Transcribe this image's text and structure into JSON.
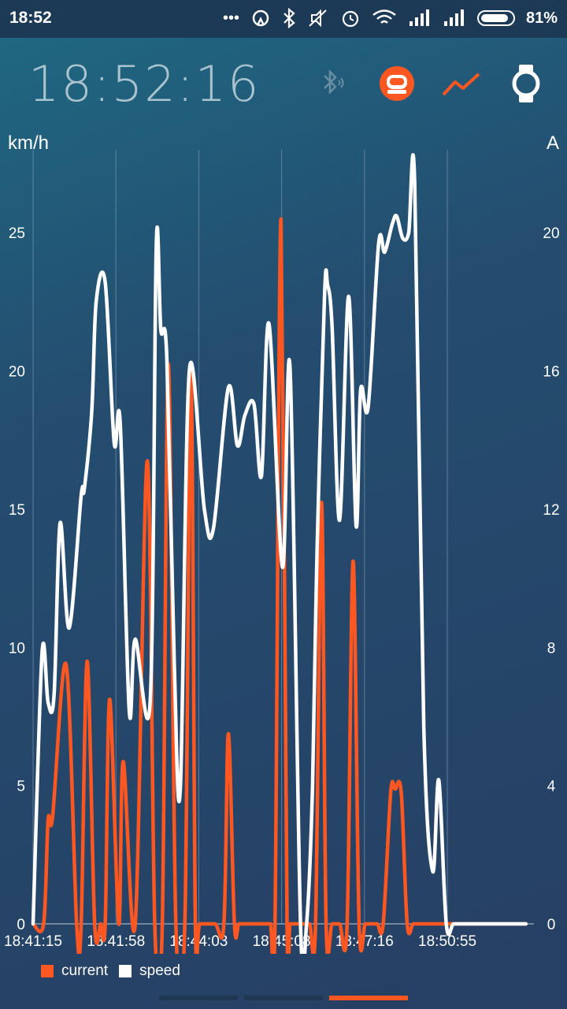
{
  "status_bar": {
    "time": "18:52",
    "battery_pct": "81%",
    "icons": [
      "more-dots-icon",
      "sync-icon",
      "bluetooth-icon",
      "mute-icon",
      "alarm-icon",
      "wifi-icon",
      "signal-icon",
      "signal-icon",
      "battery-icon"
    ]
  },
  "header": {
    "clock": "18:52:16",
    "icons": [
      "bluetooth-connect-icon",
      "wheel-device-icon",
      "chart-line-icon",
      "watch-icon"
    ]
  },
  "colors": {
    "speed": "#ffffff",
    "current": "#ff5722",
    "accent": "#ff5722"
  },
  "chart_data": {
    "type": "line",
    "y_left": {
      "label": "km/h",
      "ylim": [
        0,
        28
      ],
      "ticks": [
        0,
        5,
        10,
        15,
        20,
        25
      ]
    },
    "y_right": {
      "label": "A",
      "ylim": [
        0,
        22.4
      ],
      "ticks": [
        0,
        4,
        8,
        12,
        16,
        20
      ]
    },
    "x_tick_labels": [
      "18:41:15",
      "18:41:58",
      "18:44:03",
      "18:45:08",
      "18:47:16",
      "18:50:55"
    ],
    "x_range": [
      0,
      100
    ],
    "x_ticks": [
      0,
      16.54,
      33.08,
      49.62,
      66.17,
      82.71
    ],
    "grid": "vertical",
    "legend_placement": "bottom-left",
    "series": [
      {
        "name": "speed",
        "axis": "left",
        "color": "#ffffff",
        "x": [
          0,
          1.8,
          3.0,
          4.2,
          5.4,
          7.2,
          9.6,
          10.2,
          11.7,
          12.6,
          14.4,
          16.2,
          17.4,
          19.2,
          20.4,
          23.4,
          24.6,
          25.5,
          26.7,
          28.2,
          29.4,
          31.2,
          34.2,
          36.0,
          39.0,
          40.8,
          42.3,
          44.1,
          45.6,
          47.1,
          49.8,
          51.3,
          53.4,
          54.6,
          55.8,
          56.7,
          58.2,
          58.8,
          59.7,
          61.2,
          63.0,
          64.5,
          65.4,
          66.9,
          69.0,
          70.2,
          71.7,
          72.6,
          73.8,
          75.0,
          76.2,
          78.0,
          79.8,
          81.0,
          82.5,
          84.0,
          86.4,
          88.2,
          90.3,
          90.9,
          92.4,
          93.6,
          94.8,
          95.7,
          97.2,
          98.4
        ],
        "values": [
          0,
          9.8,
          8.0,
          8.3,
          14.5,
          10.7,
          15.5,
          15.7,
          18.5,
          22.5,
          23.2,
          17.4,
          18.1,
          7.7,
          10.3,
          8.1,
          24.6,
          21.5,
          20.5,
          9.3,
          4.9,
          20.0,
          15.0,
          14.3,
          19.4,
          17.3,
          18.4,
          18.8,
          16.2,
          21.7,
          12.9,
          20.1,
          0,
          0,
          5.0,
          13.5,
          22.8,
          23.1,
          21.6,
          14.6,
          22.7,
          14.4,
          19.3,
          18.7,
          24.6,
          24.3,
          25.3,
          25.6,
          24.8,
          25.0,
          26.8,
          7.2,
          1.9,
          5.2,
          0,
          0,
          0,
          0,
          0,
          0,
          0,
          0,
          0,
          0,
          0,
          0
        ]
      },
      {
        "name": "current",
        "axis": "right",
        "color": "#ff5722",
        "x": [
          0,
          2.1,
          3.0,
          3.9,
          6.6,
          8.7,
          9.6,
          10.8,
          12.3,
          13.5,
          14.4,
          15.3,
          17.1,
          18.0,
          20.4,
          22.8,
          24.3,
          25.8,
          27.0,
          28.5,
          30.3,
          31.5,
          32.4,
          33.3,
          36.3,
          38.1,
          39.0,
          40.2,
          41.1,
          42.6,
          43.5,
          45.0,
          46.2,
          47.4,
          48.3,
          49.5,
          50.7,
          51.3,
          52.5,
          53.1,
          54.0,
          55.2,
          56.4,
          57.6,
          58.5,
          59.7,
          61.2,
          62.7,
          63.9,
          65.1,
          66.3,
          67.2,
          68.7,
          69.9,
          71.4,
          72.3,
          73.5,
          74.7,
          75.9,
          77.4,
          78.9,
          80.4,
          81.3,
          82.2,
          83.1,
          84.0,
          85.5,
          86.4,
          87.6,
          88.8,
          89.7,
          90.6,
          91.5,
          93.0,
          94.2,
          95.4,
          96.6,
          98.4
        ],
        "values": [
          0,
          0,
          3.0,
          3.1,
          7.5,
          0,
          0,
          7.6,
          0,
          0,
          0,
          6.5,
          0,
          4.7,
          0,
          13.4,
          0,
          0,
          16.2,
          0,
          0,
          16.0,
          0,
          0,
          0,
          0,
          5.5,
          0,
          0,
          0,
          0,
          0,
          0,
          0,
          0,
          20.4,
          0,
          0,
          0,
          0,
          0,
          0,
          0,
          12.2,
          0,
          0,
          0,
          0,
          10.5,
          0,
          0,
          0,
          0,
          0,
          3.8,
          3.9,
          3.8,
          0,
          0,
          0,
          0,
          0,
          0,
          0,
          0,
          0,
          0,
          0,
          0,
          0,
          0,
          0,
          0,
          0,
          0,
          0,
          0,
          0
        ]
      }
    ]
  },
  "legend": {
    "current": "current",
    "speed": "speed"
  }
}
